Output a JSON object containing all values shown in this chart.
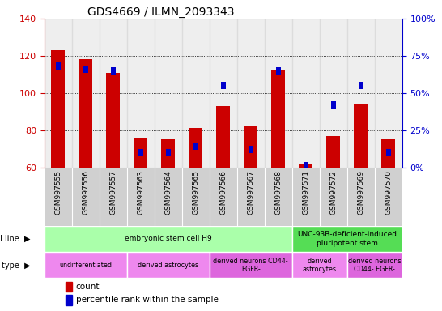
{
  "title": "GDS4669 / ILMN_2093343",
  "samples": [
    "GSM997555",
    "GSM997556",
    "GSM997557",
    "GSM997563",
    "GSM997564",
    "GSM997565",
    "GSM997566",
    "GSM997567",
    "GSM997568",
    "GSM997571",
    "GSM997572",
    "GSM997569",
    "GSM997570"
  ],
  "count_values": [
    123,
    118,
    111,
    76,
    75,
    81,
    93,
    82,
    112,
    62,
    77,
    94,
    75
  ],
  "percentile_values": [
    68,
    66,
    65,
    10,
    10,
    14,
    55,
    12,
    65,
    1,
    42,
    55,
    10
  ],
  "ylim_left": [
    60,
    140
  ],
  "ylim_right": [
    0,
    100
  ],
  "yticks_left": [
    60,
    80,
    100,
    120,
    140
  ],
  "yticks_right": [
    0,
    25,
    50,
    75,
    100
  ],
  "red_color": "#cc0000",
  "blue_color": "#0000cc",
  "cell_line_groups": [
    {
      "label": "embryonic stem cell H9",
      "start": 0,
      "end": 8,
      "color": "#aaffaa"
    },
    {
      "label": "UNC-93B-deficient-induced\npluripotent stem",
      "start": 9,
      "end": 12,
      "color": "#55dd55"
    }
  ],
  "cell_type_groups": [
    {
      "label": "undifferentiated",
      "start": 0,
      "end": 2,
      "color": "#ee88ee"
    },
    {
      "label": "derived astrocytes",
      "start": 3,
      "end": 5,
      "color": "#ee88ee"
    },
    {
      "label": "derived neurons CD44-\nEGFR-",
      "start": 6,
      "end": 8,
      "color": "#dd66dd"
    },
    {
      "label": "derived\nastrocytes",
      "start": 9,
      "end": 10,
      "color": "#ee88ee"
    },
    {
      "label": "derived neurons\nCD44- EGFR-",
      "start": 11,
      "end": 12,
      "color": "#dd66dd"
    }
  ],
  "legend_items": [
    {
      "label": "count",
      "color": "#cc0000"
    },
    {
      "label": "percentile rank within the sample",
      "color": "#0000cc"
    }
  ],
  "col_bg_color": "#d0d0d0"
}
